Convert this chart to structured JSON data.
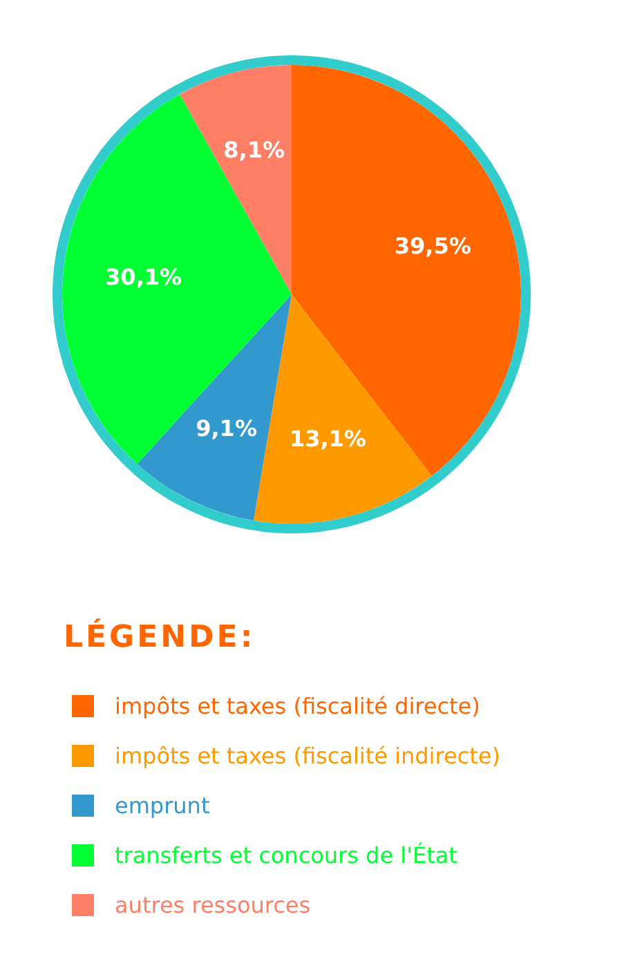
{
  "chart_data": {
    "type": "pie",
    "legend_title": "LÉGENDE:",
    "legend": "bottom",
    "categories": [
      "impôts et taxes (fiscalité directe)",
      "impôts et taxes (fiscalité indirecte)",
      "emprunt",
      "transferts et concours de l'État",
      "autres ressources"
    ],
    "values": [
      39.5,
      13.1,
      9.1,
      30.1,
      8.1
    ],
    "colors": [
      "#ff6600",
      "#ff9900",
      "#3399cc",
      "#00ff33",
      "#ff7f66"
    ],
    "value_labels": [
      "39,5%",
      "13,1%",
      "9,1%",
      "30,1%",
      "8,1%"
    ]
  }
}
